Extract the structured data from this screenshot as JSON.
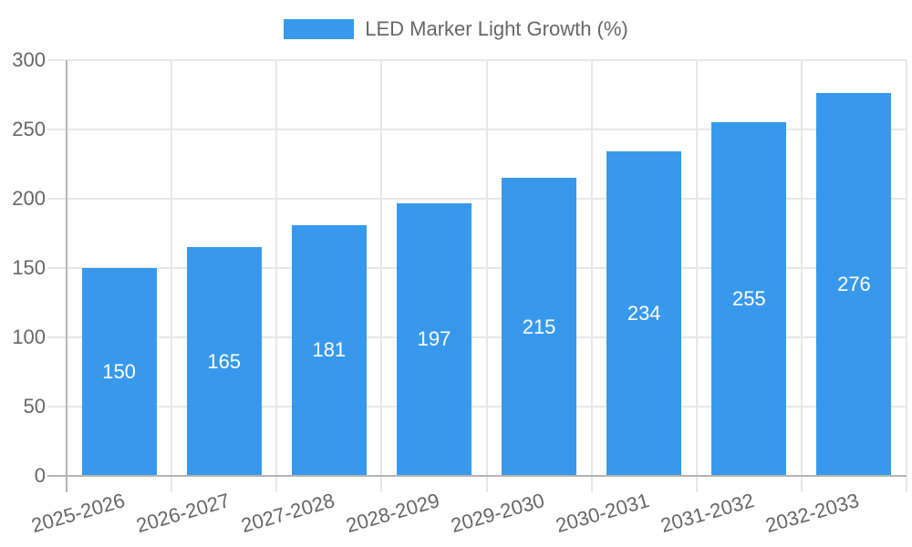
{
  "chart_data": {
    "type": "bar",
    "title": "LED Marker Light Growth (%)",
    "legend": "LED Marker Light Growth (%)",
    "legend_position": "top-center",
    "categories": [
      "2025-2026",
      "2026-2027",
      "2027-2028",
      "2028-2029",
      "2029-2030",
      "2030-2031",
      "2031-2032",
      "2032-2033"
    ],
    "series": [
      {
        "name": "LED Marker Light Growth (%)",
        "values": [
          150,
          165,
          181,
          197,
          215,
          234,
          255,
          276
        ]
      }
    ],
    "xlabel": "",
    "ylabel": "",
    "ylim": [
      0,
      300
    ],
    "yticks": [
      0,
      50,
      100,
      150,
      200,
      250,
      300
    ],
    "grid": "on",
    "value_labels": "white, centered inside bars",
    "x_label_rotation_deg": -16
  },
  "colors": {
    "bar": "#3899EC",
    "grid": "#E7E7E7",
    "axis": "#B3B3B3",
    "tick_text": "#666666",
    "value_text": "#FFFFFF",
    "background": "#FFFFFF"
  }
}
